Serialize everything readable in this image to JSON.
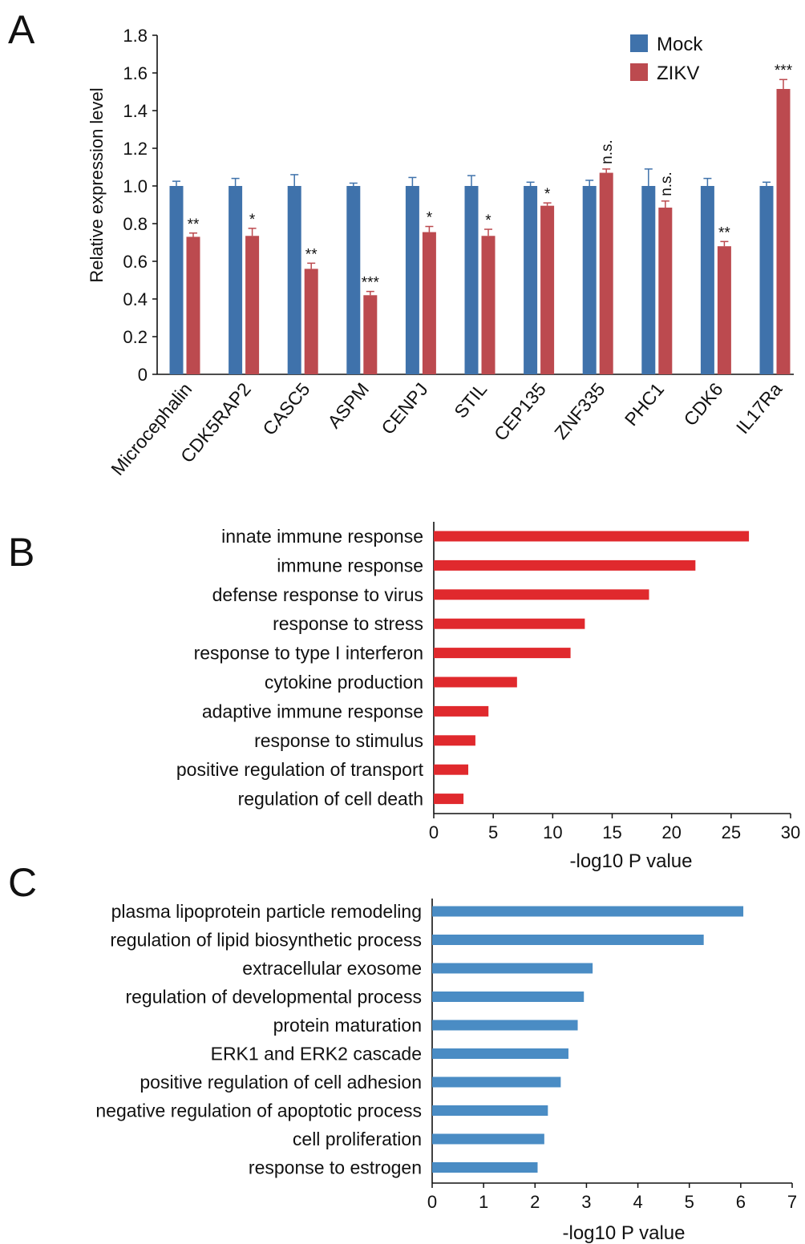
{
  "chart_data": [
    {
      "panel": "A",
      "type": "bar",
      "ylabel": "Relative expression level",
      "xlabel": "",
      "ylim": [
        0,
        1.8
      ],
      "yticks": [
        "0",
        "0.2",
        "0.4",
        "0.6",
        "0.8",
        "1.0",
        "1.2",
        "1.4",
        "1.6",
        "1.8"
      ],
      "legend_position": "top-right",
      "categories": [
        "Microcephalin",
        "CDK5RAP2",
        "CASC5",
        "ASPM",
        "CENPJ",
        "STIL",
        "CEP135",
        "ZNF335",
        "PHC1",
        "CDK6",
        "IL17Ra"
      ],
      "series": [
        {
          "name": "Mock",
          "color": "#3f72ab",
          "values": [
            1.0,
            1.0,
            1.0,
            1.0,
            1.0,
            1.0,
            1.0,
            1.0,
            1.0,
            1.0,
            1.0
          ],
          "errors": [
            0.025,
            0.04,
            0.06,
            0.015,
            0.045,
            0.055,
            0.02,
            0.03,
            0.09,
            0.04,
            0.02
          ]
        },
        {
          "name": "ZIKV",
          "color": "#bc4a4f",
          "values": [
            0.73,
            0.735,
            0.56,
            0.42,
            0.755,
            0.735,
            0.895,
            1.07,
            0.885,
            0.68,
            1.515
          ],
          "errors": [
            0.02,
            0.04,
            0.03,
            0.02,
            0.03,
            0.035,
            0.015,
            0.02,
            0.035,
            0.025,
            0.05
          ]
        }
      ],
      "significance": [
        "**",
        "*",
        "**",
        "***",
        "*",
        "*",
        "*",
        "n.s.",
        "n.s.",
        "**",
        "***"
      ]
    },
    {
      "panel": "B",
      "type": "bar",
      "orientation": "horizontal",
      "xlabel": "-log10 P value",
      "xlim": [
        0,
        30
      ],
      "xticks": [
        "0",
        "5",
        "10",
        "15",
        "20",
        "25",
        "30"
      ],
      "color": "#e0292d",
      "categories": [
        "innate immune response",
        "immune response",
        "defense response to virus",
        "response to stress",
        "response to type I interferon",
        "cytokine production",
        "adaptive immune response",
        "response to stimulus",
        "positive regulation of transport",
        "regulation of cell death"
      ],
      "values": [
        26.5,
        22.0,
        18.1,
        12.7,
        11.5,
        7.0,
        4.6,
        3.5,
        2.9,
        2.5
      ]
    },
    {
      "panel": "C",
      "type": "bar",
      "orientation": "horizontal",
      "xlabel": "-log10 P value",
      "xlim": [
        0,
        7
      ],
      "xticks": [
        "0",
        "1",
        "2",
        "3",
        "4",
        "5",
        "6",
        "7"
      ],
      "color": "#4a8cc4",
      "categories": [
        "plasma lipoprotein particle remodeling",
        "regulation of lipid biosynthetic process",
        "extracellular exosome",
        "regulation of developmental process",
        "protein maturation",
        "ERK1 and ERK2 cascade",
        "positive regulation of cell adhesion",
        "negative regulation of  apoptotic process",
        "cell proliferation",
        "response to estrogen"
      ],
      "values": [
        6.05,
        5.28,
        3.12,
        2.95,
        2.83,
        2.65,
        2.5,
        2.25,
        2.18,
        2.05
      ]
    }
  ],
  "panels": {
    "a": "A",
    "b": "B",
    "c": "C"
  }
}
